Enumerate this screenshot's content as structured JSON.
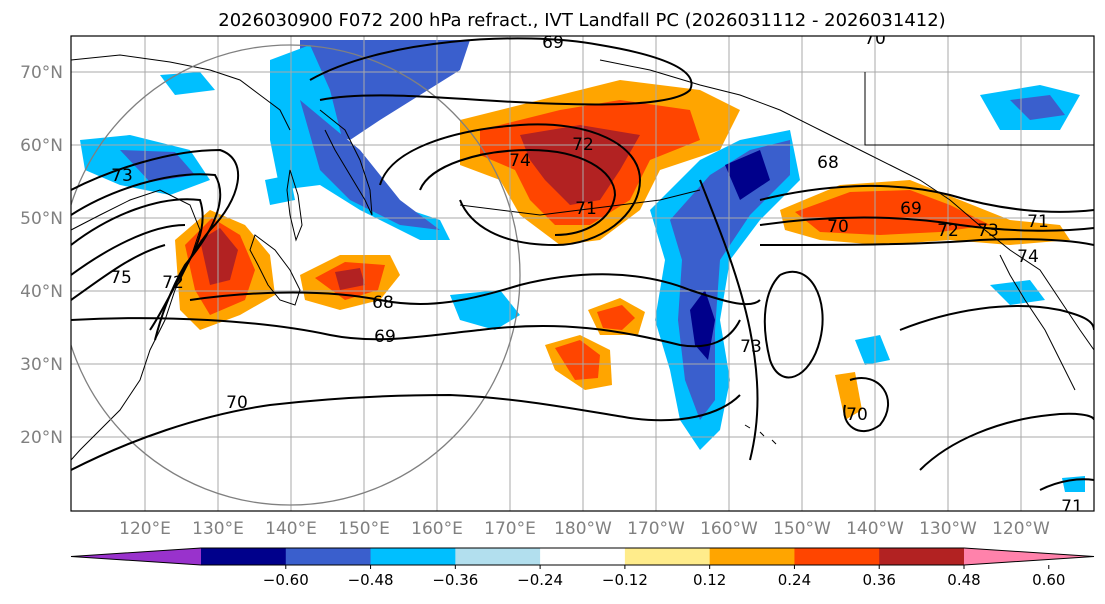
{
  "title": "2026030900 F072 200 hPa refract., IVT Landfall PC (2026031112 - 2026031412)",
  "lat_labels": [
    "70°N",
    "60°N",
    "50°N",
    "40°N",
    "30°N",
    "20°N"
  ],
  "lon_labels": [
    "120°E",
    "130°E",
    "140°E",
    "150°E",
    "160°E",
    "170°E",
    "180°W",
    "170°W",
    "160°W",
    "150°W",
    "140°W",
    "130°W",
    "120°W"
  ],
  "colorbar": {
    "colors": [
      "#9932cc",
      "#00008b",
      "#3a5fcd",
      "#00bfff",
      "#b2dfee",
      "#ffffff",
      "#ffec8b",
      "#ffa500",
      "#ff4500",
      "#b22222",
      "#ff82ab"
    ],
    "labels": [
      "−0.60",
      "−0.48",
      "−0.36",
      "−0.24",
      "−0.12",
      "0.12",
      "0.24",
      "0.36",
      "0.48",
      "0.60"
    ]
  },
  "contour_labels": [
    "69",
    "70",
    "73",
    "74",
    "72",
    "71",
    "75",
    "68",
    "69",
    "70",
    "73",
    "70",
    "68",
    "69",
    "70",
    "72",
    "73",
    "71",
    "74",
    "71",
    "72"
  ]
}
